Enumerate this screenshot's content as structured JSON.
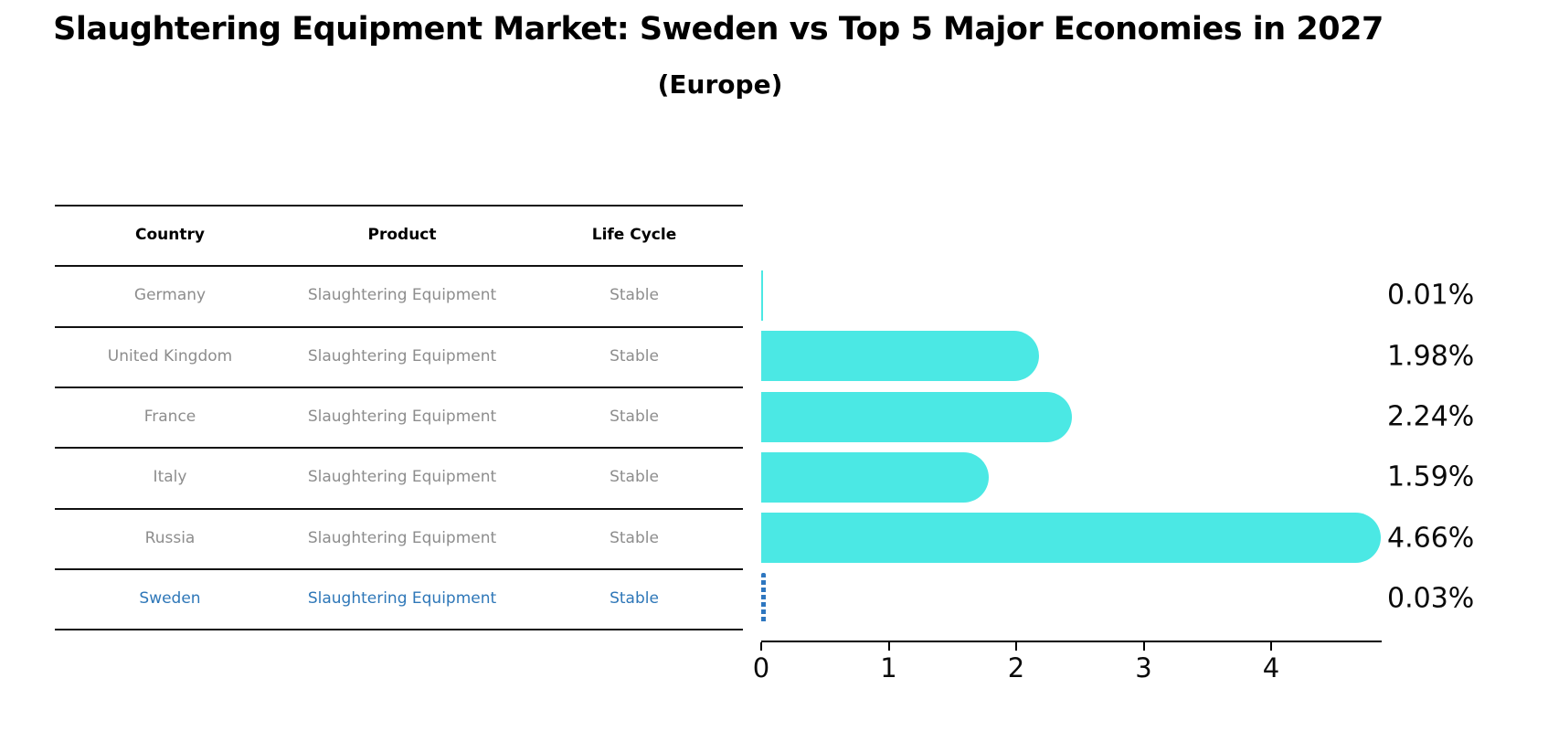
{
  "header": {
    "title": "Slaughtering Equipment Market: Sweden vs Top 5 Major Economies in 2027",
    "subtitle": "(Europe)"
  },
  "table": {
    "columns": [
      "Country",
      "Product",
      "Life Cycle"
    ],
    "rows": [
      {
        "country": "Germany",
        "product": "Slaughtering Equipment",
        "life_cycle": "Stable",
        "highlighted": false
      },
      {
        "country": "United Kingdom",
        "product": "Slaughtering Equipment",
        "life_cycle": "Stable",
        "highlighted": false
      },
      {
        "country": "France",
        "product": "Slaughtering Equipment",
        "life_cycle": "Stable",
        "highlighted": false
      },
      {
        "country": "Italy",
        "product": "Slaughtering Equipment",
        "life_cycle": "Stable",
        "highlighted": false
      },
      {
        "country": "Russia",
        "product": "Slaughtering Equipment",
        "life_cycle": "Stable",
        "highlighted": false
      },
      {
        "country": "Sweden",
        "product": "Slaughtering Equipment",
        "life_cycle": "Stable",
        "highlighted": true
      }
    ]
  },
  "chart_data": {
    "type": "bar",
    "orientation": "horizontal",
    "title": "Slaughtering Equipment Market: Sweden vs Top 5 Major Economies in 2027 (Europe)",
    "categories": [
      "Germany",
      "United Kingdom",
      "France",
      "Italy",
      "Russia",
      "Sweden"
    ],
    "values": [
      0.01,
      1.98,
      2.24,
      1.59,
      4.66,
      0.03
    ],
    "value_labels": [
      "0.01%",
      "1.98%",
      "2.24%",
      "1.59%",
      "4.66%",
      "0.03%"
    ],
    "x_ticks": [
      "0",
      "1",
      "2",
      "3",
      "4"
    ],
    "x_tick_values": [
      0,
      1,
      2,
      3,
      4
    ],
    "xlim": [
      0,
      4.87
    ],
    "grid": false,
    "legend": false,
    "bar_color": "#4be8e4",
    "highlight_index": 5,
    "highlight_style": "dashed-blue-line",
    "highlight_color": "#2e77c0"
  },
  "colors": {
    "background": "#ffffff",
    "title_text": "#000000",
    "table_rule": "#111111",
    "row_text": "#8d8d8d",
    "highlight_text": "#2e77b8",
    "bar_fill": "#4be8e4",
    "axis": "#000000"
  }
}
